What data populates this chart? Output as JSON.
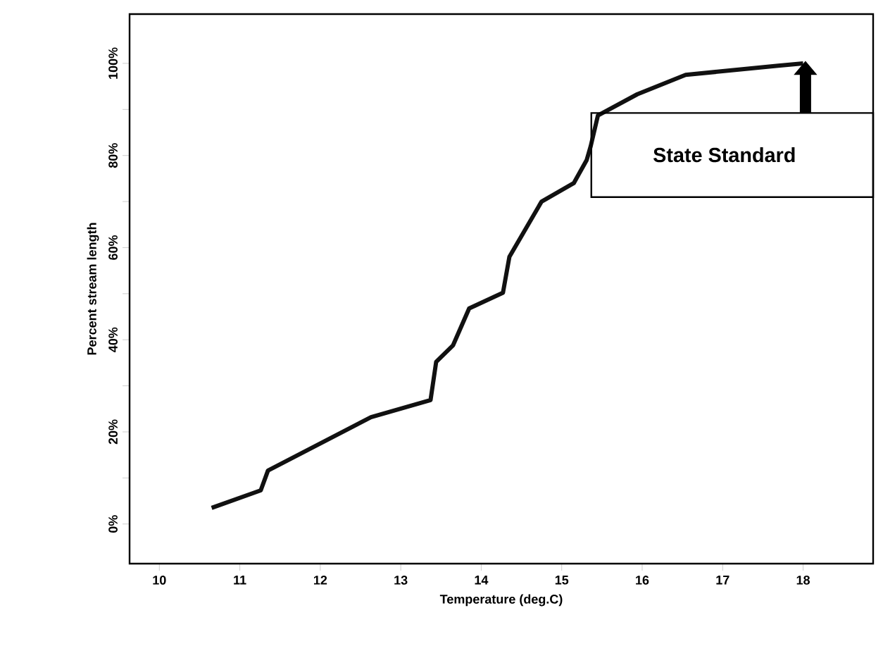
{
  "chart_data": {
    "type": "line",
    "xlabel": "Temperature (deg.C)",
    "ylabel": "Percent stream length",
    "x": [
      10.65,
      11.26,
      11.35,
      12.63,
      13.37,
      13.44,
      13.65,
      13.85,
      14.27,
      14.35,
      14.75,
      15.15,
      15.31,
      15.36,
      15.45,
      15.94,
      16.54,
      17.0,
      17.69,
      18.0
    ],
    "series": [
      {
        "color": "#111111",
        "values": [
          3.5,
          7.3,
          11.6,
          23.2,
          26.9,
          35.2,
          38.8,
          46.8,
          50.2,
          58.0,
          70.0,
          74.0,
          79.0,
          82.0,
          88.7,
          93.3,
          97.5,
          98.3,
          99.5,
          100.0
        ]
      }
    ],
    "xlim": [
      9.63,
      18.87
    ],
    "ylim": [
      -8.6,
      110.7
    ],
    "xticks": [
      10,
      11,
      12,
      13,
      14,
      15,
      16,
      17,
      18
    ],
    "yticks": [
      {
        "value": 0,
        "label": "0%"
      },
      {
        "value": 10,
        "label": null
      },
      {
        "value": 20,
        "label": "20%"
      },
      {
        "value": 30,
        "label": null
      },
      {
        "value": 40,
        "label": "40%"
      },
      {
        "value": 50,
        "label": null
      },
      {
        "value": 60,
        "label": "60%"
      },
      {
        "value": 70,
        "label": null
      },
      {
        "value": 80,
        "label": "80%"
      },
      {
        "value": 90,
        "label": null
      },
      {
        "value": 100,
        "label": "100%"
      }
    ],
    "annotations": [
      "State Standard"
    ],
    "grid": false,
    "marker": "none",
    "line_style": "solid"
  }
}
